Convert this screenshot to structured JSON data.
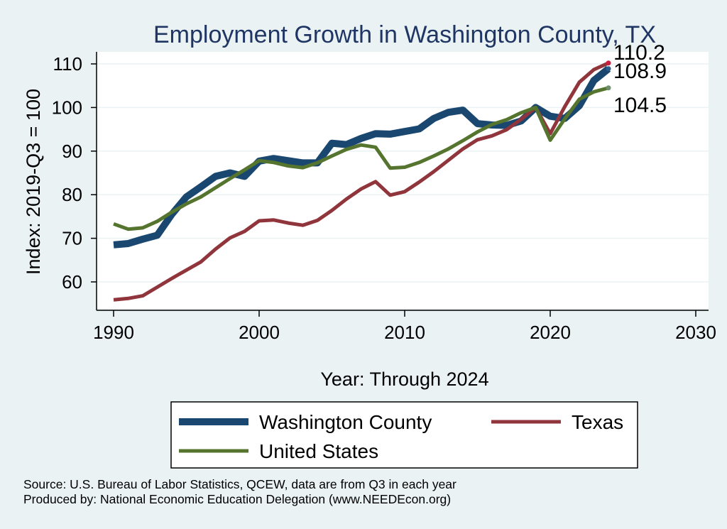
{
  "chart_data": {
    "type": "line",
    "title": "Employment Growth in Washington County, TX",
    "xlabel": "Year: Through 2024",
    "ylabel": "Index: 2019-Q3 = 100",
    "xlim": [
      1990,
      2030
    ],
    "ylim": [
      55,
      113
    ],
    "x_ticks": [
      1990,
      2000,
      2010,
      2020,
      2030
    ],
    "y_ticks": [
      60,
      70,
      80,
      90,
      100,
      110
    ],
    "grid": true,
    "legend_position": "bottom",
    "series": [
      {
        "name": "Washington  County",
        "color": "#1a476f",
        "x": [
          1990,
          1991,
          1992,
          1993,
          1994,
          1995,
          1996,
          1997,
          1998,
          1999,
          2000,
          2001,
          2002,
          2003,
          2004,
          2005,
          2006,
          2007,
          2008,
          2009,
          2010,
          2011,
          2012,
          2013,
          2014,
          2015,
          2016,
          2017,
          2018,
          2019,
          2020,
          2021,
          2022,
          2023,
          2024
        ],
        "values": [
          68.5,
          68.8,
          69.8,
          70.7,
          75.5,
          79.5,
          81.8,
          84.2,
          85.0,
          84.2,
          87.7,
          88.3,
          87.8,
          87.3,
          87.3,
          91.8,
          91.5,
          92.9,
          94.0,
          93.9,
          94.5,
          95.1,
          97.5,
          98.9,
          99.4,
          96.3,
          96.0,
          95.9,
          96.9,
          100.0,
          98.0,
          97.5,
          100.4,
          106.2,
          108.9
        ]
      },
      {
        "name": "Texas",
        "color": "#90353b",
        "x": [
          1990,
          1991,
          1992,
          1993,
          1994,
          1995,
          1996,
          1997,
          1998,
          1999,
          2000,
          2001,
          2002,
          2003,
          2004,
          2005,
          2006,
          2007,
          2008,
          2009,
          2010,
          2011,
          2012,
          2013,
          2014,
          2015,
          2016,
          2017,
          2018,
          2019,
          2020,
          2021,
          2022,
          2023,
          2024
        ],
        "values": [
          55.9,
          56.2,
          56.8,
          58.8,
          60.8,
          62.7,
          64.6,
          67.5,
          70.1,
          71.6,
          74.0,
          74.2,
          73.5,
          73.0,
          74.1,
          76.4,
          79.0,
          81.3,
          83.0,
          79.9,
          80.7,
          82.9,
          85.3,
          87.9,
          90.5,
          92.6,
          93.5,
          94.9,
          97.3,
          100.0,
          94.0,
          100.2,
          105.8,
          108.7,
          110.2
        ]
      },
      {
        "name": "United States",
        "color": "#55752f",
        "x": [
          1990,
          1991,
          1992,
          1993,
          1994,
          1995,
          1996,
          1997,
          1998,
          1999,
          2000,
          2001,
          2002,
          2003,
          2004,
          2005,
          2006,
          2007,
          2008,
          2009,
          2010,
          2011,
          2012,
          2013,
          2014,
          2015,
          2016,
          2017,
          2018,
          2019,
          2020,
          2021,
          2022,
          2023,
          2024
        ],
        "values": [
          73.3,
          72.1,
          72.4,
          73.9,
          76.0,
          77.9,
          79.5,
          81.6,
          83.7,
          85.7,
          87.8,
          87.4,
          86.6,
          86.2,
          87.3,
          88.9,
          90.4,
          91.4,
          90.9,
          86.1,
          86.3,
          87.4,
          88.9,
          90.5,
          92.4,
          94.4,
          96.1,
          97.2,
          98.8,
          100.0,
          92.5,
          97.4,
          101.9,
          103.6,
          104.5
        ]
      }
    ],
    "end_labels": [
      "110.2",
      "108.9",
      "104.5"
    ]
  },
  "source_note": "Source: U.S. Bureau of Labor Statistics, QCEW, data are from Q3 in each year",
  "producer_note": "Produced by: National Economic Education Delegation (www.NEEDEcon.org)"
}
